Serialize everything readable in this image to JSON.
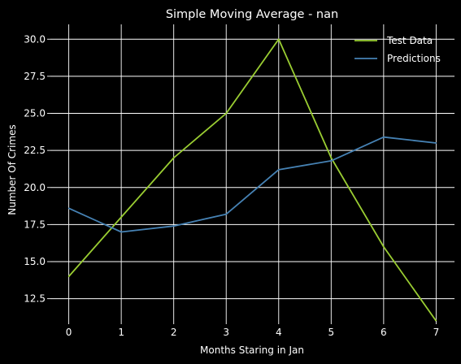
{
  "chart_data": {
    "type": "line",
    "title": "Simple Moving Average - nan",
    "xlabel": "Months Staring in Jan",
    "ylabel": "Number Of Crimes",
    "x": [
      0,
      1,
      2,
      3,
      4,
      5,
      6,
      7
    ],
    "xlim": [
      -0.35,
      7.35
    ],
    "ylim": [
      11,
      31
    ],
    "x_ticks": [
      "0",
      "1",
      "2",
      "3",
      "4",
      "5",
      "6",
      "7"
    ],
    "y_ticks": [
      "12.5",
      "15.0",
      "17.5",
      "20.0",
      "22.5",
      "25.0",
      "27.5",
      "30.0"
    ],
    "grid": true,
    "legend_position": "top-right",
    "background": "#000000",
    "series": [
      {
        "name": "Test Data",
        "color": "#9acd32",
        "values": [
          14,
          18,
          22,
          25,
          30,
          22,
          16,
          11
        ]
      },
      {
        "name": "Predictions",
        "color": "#4682b4",
        "values": [
          18.6,
          17.0,
          17.4,
          18.2,
          21.2,
          21.8,
          23.4,
          23.0
        ]
      }
    ]
  }
}
